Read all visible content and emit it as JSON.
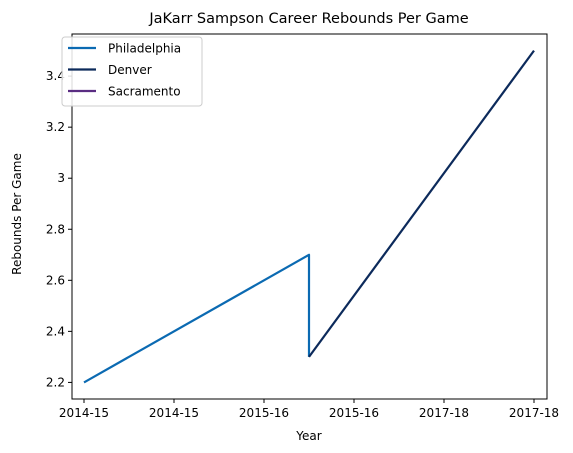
{
  "chart_data": {
    "type": "line",
    "title": "JaKarr Sampson Career Rebounds Per Game",
    "xlabel": "Year",
    "ylabel": "Rebounds Per Game",
    "x_tick_labels": [
      "2014-15",
      "2014-15",
      "2015-16",
      "2015-16",
      "2017-18",
      "2017-18"
    ],
    "y_ticks": [
      2.2,
      2.4,
      2.6,
      2.8,
      3.0,
      3.2,
      3.4
    ],
    "ylim": [
      2.135,
      3.565
    ],
    "legend_position": "top-left",
    "grid": false,
    "series": [
      {
        "name": "Philadelphia",
        "color": "#0b6ab2",
        "points": [
          {
            "x": "2014-15",
            "y": 2.2
          },
          {
            "x": "2015-16",
            "y": 2.7
          },
          {
            "x": "2015-16",
            "y": 2.3
          }
        ]
      },
      {
        "name": "Denver",
        "color": "#0c2a5b",
        "points": [
          {
            "x": "2015-16",
            "y": 2.3
          },
          {
            "x": "2017-18",
            "y": 3.5
          }
        ]
      },
      {
        "name": "Sacramento",
        "color": "#5a2d82",
        "points": []
      }
    ]
  }
}
